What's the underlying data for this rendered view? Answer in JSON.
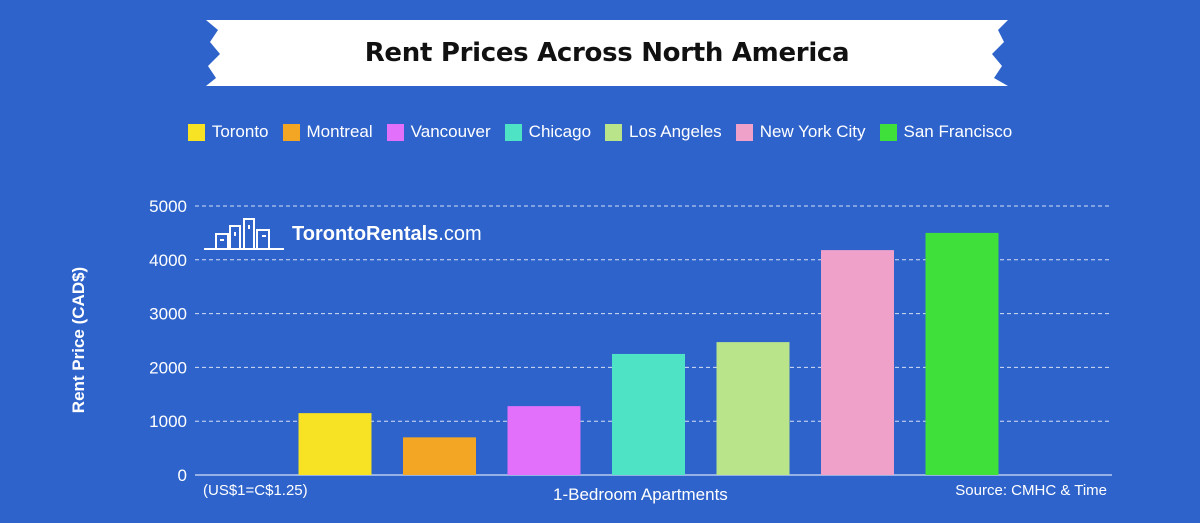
{
  "chart_data": {
    "type": "bar",
    "title": "Rent Prices Across North America",
    "xlabel": "1-Bedroom Apartments",
    "ylabel": "Rent Price (CAD$)",
    "ylim": [
      0,
      5000
    ],
    "yticks": [
      0,
      1000,
      2000,
      3000,
      4000,
      5000
    ],
    "grid": true,
    "legend_position": "top-center",
    "categories": [
      "Toronto",
      "Montreal",
      "Vancouver",
      "Chicago",
      "Los Angeles",
      "New York City",
      "San Francisco"
    ],
    "values": [
      1150,
      700,
      1280,
      2250,
      2470,
      4180,
      4500
    ],
    "colors": [
      "#f7e223",
      "#f3a623",
      "#e270fb",
      "#4ee3c4",
      "#b9e48a",
      "#f0a1ca",
      "#3ee039"
    ]
  },
  "notes": {
    "exchange": "(US$1=C$1.25)",
    "source": "Source: CMHC & Time"
  },
  "brand": {
    "name": "TorontoRentals",
    "suffix": ".com"
  }
}
